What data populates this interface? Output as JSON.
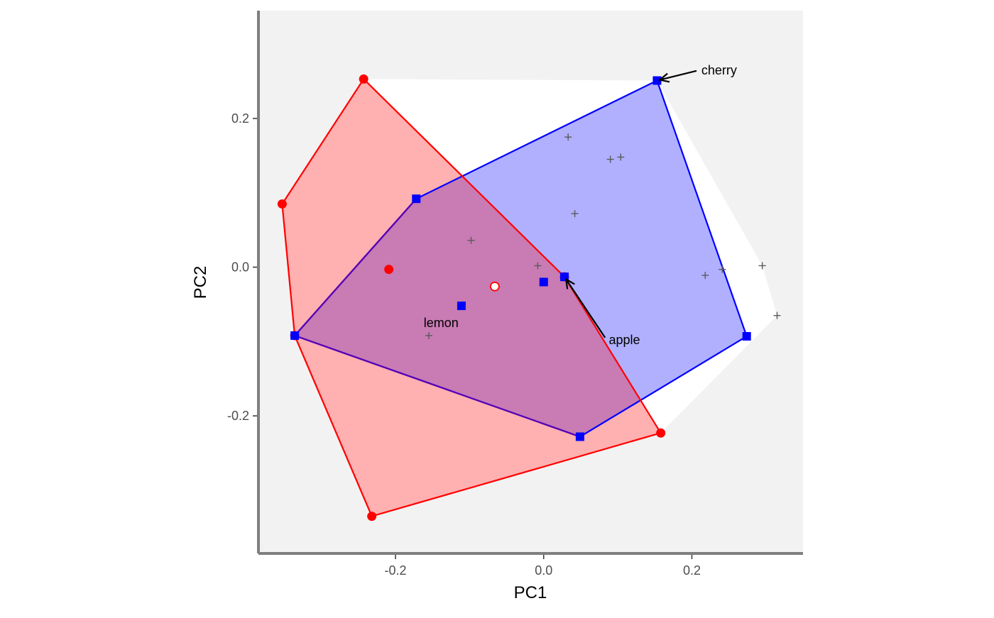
{
  "chart_data": {
    "type": "scatter",
    "xlabel": "PC1",
    "ylabel": "PC2",
    "xlim": [
      -0.385,
      0.35
    ],
    "ylim": [
      -0.385,
      0.345
    ],
    "x_ticks": [
      {
        "value": -0.2,
        "label": "-0.2"
      },
      {
        "value": 0.0,
        "label": "0.0"
      },
      {
        "value": 0.2,
        "label": "0.2"
      }
    ],
    "y_ticks": [
      {
        "value": 0.2,
        "label": "0.2"
      },
      {
        "value": 0.0,
        "label": "0.0"
      },
      {
        "value": -0.2,
        "label": "-0.2"
      }
    ],
    "grid": false,
    "legend": "none",
    "colors": {
      "panel_background": "#f2f2f2",
      "red": "#ff0000",
      "blue": "#0000ff",
      "red_fill": "#ffb0b0",
      "blue_fill": "#b0b0ff",
      "overlap_fill": "#c97bb3",
      "cross": "#5a5a5a",
      "axis_line": "#7f7f7f"
    },
    "background_hull": [
      [
        -0.243,
        0.253
      ],
      [
        0.153,
        0.251
      ],
      [
        0.295,
        0.002
      ],
      [
        0.315,
        -0.065
      ],
      [
        0.158,
        -0.223
      ],
      [
        -0.232,
        -0.335
      ],
      [
        -0.336,
        -0.092
      ],
      [
        -0.353,
        0.085
      ]
    ],
    "series": [
      {
        "color": "red",
        "marker": "circle",
        "hull": [
          [
            -0.243,
            0.253
          ],
          [
            0.028,
            -0.013
          ],
          [
            0.158,
            -0.223
          ],
          [
            -0.232,
            -0.335
          ],
          [
            -0.336,
            -0.092
          ],
          [
            -0.353,
            0.085
          ]
        ],
        "points": [
          [
            -0.243,
            0.253
          ],
          [
            -0.353,
            0.085
          ],
          [
            -0.336,
            -0.092
          ],
          [
            -0.232,
            -0.335
          ],
          [
            0.158,
            -0.223
          ],
          [
            0.028,
            -0.013
          ],
          [
            -0.209,
            -0.003
          ]
        ]
      },
      {
        "color": "blue",
        "marker": "square",
        "hull": [
          [
            0.153,
            0.251
          ],
          [
            0.274,
            -0.093
          ],
          [
            0.049,
            -0.228
          ],
          [
            -0.336,
            -0.092
          ],
          [
            -0.172,
            0.092
          ]
        ],
        "points": [
          [
            0.153,
            0.251
          ],
          [
            0.274,
            -0.093
          ],
          [
            0.049,
            -0.228
          ],
          [
            -0.336,
            -0.092
          ],
          [
            -0.172,
            0.092
          ],
          [
            -0.111,
            -0.052
          ],
          [
            0.0,
            -0.02
          ],
          [
            0.028,
            -0.013
          ]
        ]
      }
    ],
    "centroid": [
      -0.066,
      -0.026
    ],
    "other_points": [
      [
        0.033,
        0.175
      ],
      [
        0.09,
        0.145
      ],
      [
        0.104,
        0.148
      ],
      [
        0.042,
        0.072
      ],
      [
        -0.098,
        0.036
      ],
      [
        -0.008,
        0.002
      ],
      [
        0.218,
        -0.011
      ],
      [
        0.241,
        -0.003
      ],
      [
        0.295,
        0.002
      ],
      [
        0.315,
        -0.065
      ],
      [
        -0.155,
        -0.092
      ]
    ],
    "annotations": [
      {
        "text": "cherry",
        "point": [
          0.153,
          0.251
        ],
        "text_pos": [
          0.21,
          0.265
        ],
        "arrow": true
      },
      {
        "text": "apple",
        "point": [
          0.028,
          -0.013
        ],
        "text_pos": [
          0.085,
          -0.098
        ],
        "arrow": true
      },
      {
        "text": "lemon",
        "point": [
          -0.111,
          -0.052
        ],
        "text_pos": [
          -0.162,
          -0.075
        ],
        "arrow": false
      }
    ]
  }
}
